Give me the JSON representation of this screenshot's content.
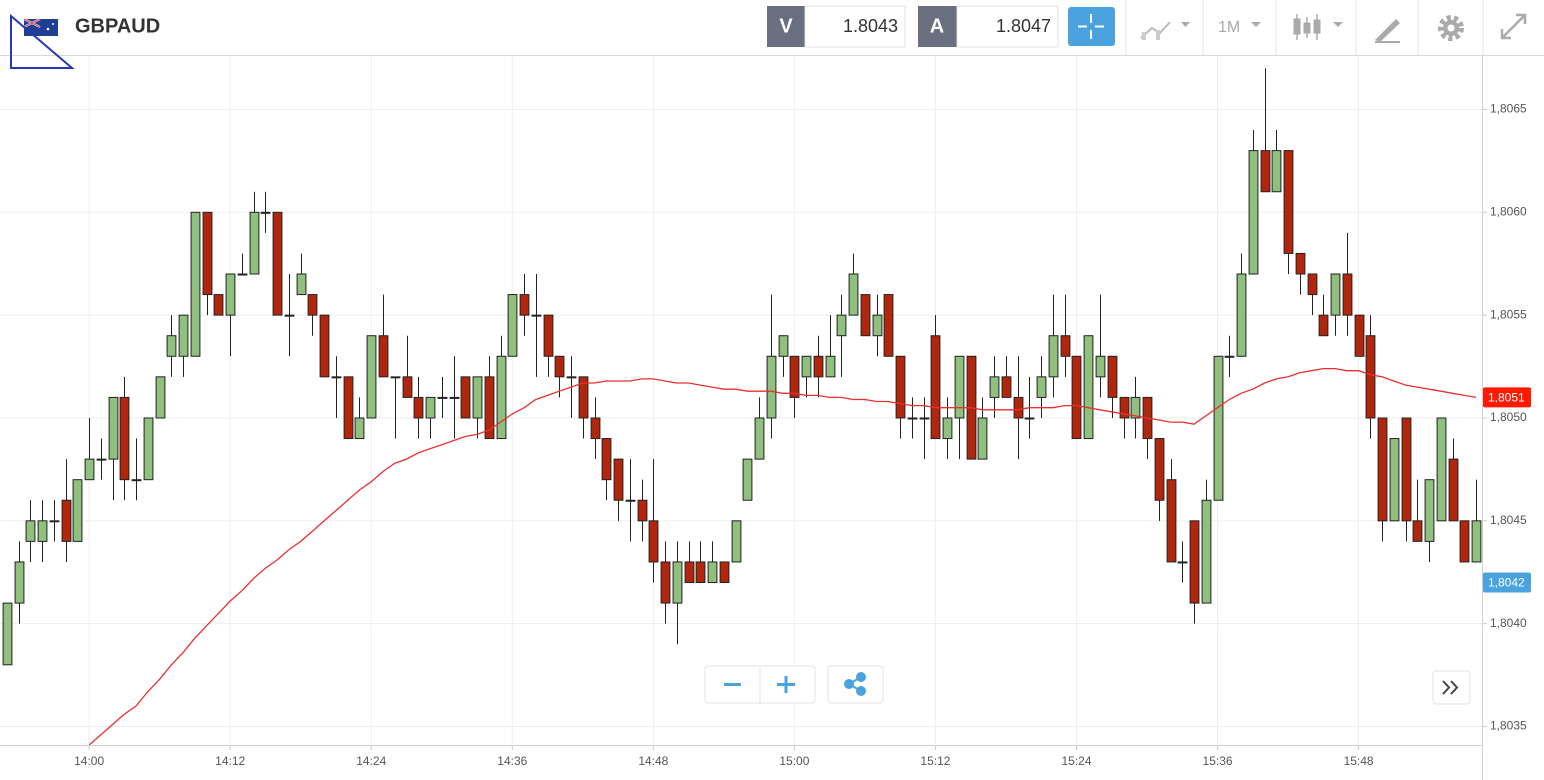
{
  "header": {
    "symbol": "GBPAUD",
    "bid_label": "V",
    "bid": 1.8043,
    "ask_label": "A",
    "ask": 1.8047,
    "timeframe": "1M"
  },
  "chart_data": {
    "type": "candlestick",
    "up_color": "#8fc07d",
    "down_color": "#b3260e",
    "x": [
      "13:53",
      "13:54",
      "13:55",
      "13:56",
      "13:57",
      "13:58",
      "13:59",
      "14:00",
      "14:01",
      "14:02",
      "14:03",
      "14:04",
      "14:05",
      "14:06",
      "14:07",
      "14:08",
      "14:09",
      "14:10",
      "14:11",
      "14:12",
      "14:13",
      "14:14",
      "14:15",
      "14:16",
      "14:17",
      "14:18",
      "14:19",
      "14:20",
      "14:21",
      "14:22",
      "14:23",
      "14:24",
      "14:25",
      "14:26",
      "14:27",
      "14:28",
      "14:29",
      "14:30",
      "14:31",
      "14:32",
      "14:33",
      "14:34",
      "14:35",
      "14:36",
      "14:37",
      "14:38",
      "14:39",
      "14:40",
      "14:41",
      "14:42",
      "14:43",
      "14:44",
      "14:45",
      "14:46",
      "14:47",
      "14:48",
      "14:49",
      "14:50",
      "14:51",
      "14:52",
      "14:53",
      "14:54",
      "14:55",
      "14:56",
      "14:57",
      "14:58",
      "14:59",
      "15:00",
      "15:01",
      "15:02",
      "15:03",
      "15:04",
      "15:05",
      "15:06",
      "15:07",
      "15:08",
      "15:09",
      "15:10",
      "15:11",
      "15:12",
      "15:13",
      "15:14",
      "15:15",
      "15:16",
      "15:17",
      "15:18",
      "15:19",
      "15:20",
      "15:21",
      "15:22",
      "15:23",
      "15:24",
      "15:25",
      "15:26",
      "15:27",
      "15:28",
      "15:29",
      "15:30",
      "15:31",
      "15:32",
      "15:33",
      "15:34",
      "15:35",
      "15:36",
      "15:37",
      "15:38",
      "15:39",
      "15:40",
      "15:41",
      "15:42",
      "15:43",
      "15:44",
      "15:45",
      "15:46",
      "15:47",
      "15:48",
      "15:49",
      "15:50",
      "15:51",
      "15:52",
      "15:53",
      "15:54",
      "15:55",
      "15:56",
      "15:57",
      "15:58"
    ],
    "open": [
      1.8038,
      1.8041,
      1.8044,
      1.8044,
      1.8045,
      1.8046,
      1.8044,
      1.8047,
      1.8048,
      1.8048,
      1.8051,
      1.8047,
      1.8047,
      1.805,
      1.8053,
      1.8053,
      1.8053,
      1.806,
      1.8056,
      1.8055,
      1.8057,
      1.8057,
      1.806,
      1.806,
      1.8055,
      1.8056,
      1.8056,
      1.8055,
      1.8052,
      1.8052,
      1.8049,
      1.805,
      1.8054,
      1.8052,
      1.8052,
      1.8051,
      1.805,
      1.8051,
      1.8051,
      1.8052,
      1.805,
      1.8052,
      1.8049,
      1.8053,
      1.8056,
      1.8055,
      1.8055,
      1.8053,
      1.8052,
      1.8052,
      1.805,
      1.8049,
      1.8048,
      1.8046,
      1.8046,
      1.8045,
      1.8043,
      1.8041,
      1.8043,
      1.8043,
      1.8042,
      1.8043,
      1.8043,
      1.8046,
      1.8048,
      1.805,
      1.8053,
      1.8053,
      1.8052,
      1.8053,
      1.8052,
      1.8054,
      1.8055,
      1.8056,
      1.8054,
      1.8056,
      1.8053,
      1.805,
      1.805,
      1.8054,
      1.8049,
      1.805,
      1.8053,
      1.8048,
      1.8051,
      1.8052,
      1.8051,
      1.805,
      1.8051,
      1.8052,
      1.8054,
      1.8053,
      1.8049,
      1.8052,
      1.8053,
      1.8051,
      1.805,
      1.8051,
      1.8049,
      1.8047,
      1.8043,
      1.8045,
      1.8041,
      1.8046,
      1.8053,
      1.8053,
      1.8057,
      1.8063,
      1.8061,
      1.8063,
      1.8058,
      1.8057,
      1.8055,
      1.8055,
      1.8057,
      1.8055,
      1.8054,
      1.805,
      1.8045,
      1.805,
      1.8045,
      1.8044,
      1.8045,
      1.8048,
      1.8045,
      1.8043
    ],
    "high": [
      1.8041,
      1.8044,
      1.8046,
      1.8046,
      1.8046,
      1.8048,
      1.8047,
      1.805,
      1.8049,
      1.8051,
      1.8052,
      1.8049,
      1.805,
      1.8052,
      1.8055,
      1.8055,
      1.806,
      1.806,
      1.8056,
      1.8057,
      1.8058,
      1.8061,
      1.8061,
      1.806,
      1.8057,
      1.8058,
      1.8056,
      1.8055,
      1.8053,
      1.8052,
      1.8051,
      1.8054,
      1.8056,
      1.8052,
      1.8054,
      1.8052,
      1.8051,
      1.8052,
      1.8053,
      1.8052,
      1.8052,
      1.8053,
      1.8054,
      1.8056,
      1.8057,
      1.8057,
      1.8055,
      1.8053,
      1.8053,
      1.8052,
      1.8051,
      1.8049,
      1.8048,
      1.8048,
      1.8047,
      1.8048,
      1.8044,
      1.8044,
      1.8044,
      1.8044,
      1.8044,
      1.8043,
      1.8045,
      1.8048,
      1.8051,
      1.8056,
      1.8054,
      1.8053,
      1.8053,
      1.8054,
      1.8055,
      1.8056,
      1.8058,
      1.8056,
      1.8056,
      1.8056,
      1.8053,
      1.8051,
      1.8051,
      1.8055,
      1.8051,
      1.8053,
      1.8053,
      1.8051,
      1.8053,
      1.8053,
      1.8053,
      1.8052,
      1.8053,
      1.8056,
      1.8056,
      1.8053,
      1.8054,
      1.8056,
      1.8053,
      1.8051,
      1.8052,
      1.8051,
      1.8049,
      1.8048,
      1.8044,
      1.8045,
      1.8047,
      1.8053,
      1.8054,
      1.8058,
      1.8064,
      1.8067,
      1.8064,
      1.8063,
      1.8058,
      1.8057,
      1.8056,
      1.8057,
      1.8059,
      1.8055,
      1.8055,
      1.805,
      1.8049,
      1.805,
      1.8047,
      1.8047,
      1.805,
      1.8049,
      1.8045,
      1.8047
    ],
    "low": [
      1.8038,
      1.804,
      1.8043,
      1.8043,
      1.8044,
      1.8043,
      1.8044,
      1.8047,
      1.8047,
      1.8046,
      1.8046,
      1.8046,
      1.8047,
      1.805,
      1.8052,
      1.8052,
      1.8053,
      1.8055,
      1.8055,
      1.8053,
      1.8057,
      1.8057,
      1.8059,
      1.8055,
      1.8053,
      1.8056,
      1.8054,
      1.8052,
      1.805,
      1.8049,
      1.8049,
      1.805,
      1.8052,
      1.8049,
      1.8051,
      1.8049,
      1.8049,
      1.805,
      1.8049,
      1.805,
      1.8049,
      1.8049,
      1.8049,
      1.8053,
      1.8054,
      1.8052,
      1.8052,
      1.8051,
      1.805,
      1.8049,
      1.8048,
      1.8046,
      1.8045,
      1.8044,
      1.8044,
      1.8042,
      1.804,
      1.8039,
      1.8042,
      1.8042,
      1.8042,
      1.8042,
      1.8043,
      1.8046,
      1.8048,
      1.8049,
      1.8052,
      1.805,
      1.8051,
      1.8051,
      1.8052,
      1.8052,
      1.8055,
      1.8054,
      1.8053,
      1.8053,
      1.8049,
      1.8049,
      1.8048,
      1.8049,
      1.8048,
      1.8048,
      1.8048,
      1.8048,
      1.805,
      1.8051,
      1.8048,
      1.8049,
      1.805,
      1.8051,
      1.8052,
      1.8049,
      1.8049,
      1.8051,
      1.805,
      1.8049,
      1.8049,
      1.8048,
      1.8045,
      1.8043,
      1.8042,
      1.804,
      1.8041,
      1.8046,
      1.8052,
      1.8053,
      1.8057,
      1.8061,
      1.8061,
      1.8057,
      1.8056,
      1.8055,
      1.8054,
      1.8054,
      1.8054,
      1.8053,
      1.8049,
      1.8044,
      1.8045,
      1.8044,
      1.8044,
      1.8043,
      1.8045,
      1.8045,
      1.8043,
      1.8043
    ],
    "close": [
      1.8041,
      1.8043,
      1.8045,
      1.8045,
      1.8045,
      1.8044,
      1.8047,
      1.8048,
      1.8048,
      1.8051,
      1.8047,
      1.8047,
      1.805,
      1.8052,
      1.8054,
      1.8055,
      1.806,
      1.8056,
      1.8055,
      1.8057,
      1.8057,
      1.806,
      1.806,
      1.8055,
      1.8055,
      1.8057,
      1.8055,
      1.8052,
      1.8052,
      1.8049,
      1.805,
      1.8054,
      1.8052,
      1.8052,
      1.8051,
      1.805,
      1.8051,
      1.8051,
      1.8051,
      1.805,
      1.8052,
      1.8049,
      1.8053,
      1.8056,
      1.8055,
      1.8055,
      1.8053,
      1.8052,
      1.8052,
      1.805,
      1.8049,
      1.8047,
      1.8046,
      1.8046,
      1.8045,
      1.8043,
      1.8041,
      1.8043,
      1.8042,
      1.8042,
      1.8043,
      1.8042,
      1.8045,
      1.8048,
      1.805,
      1.8053,
      1.8054,
      1.8051,
      1.8053,
      1.8052,
      1.8053,
      1.8055,
      1.8057,
      1.8054,
      1.8055,
      1.8053,
      1.805,
      1.805,
      1.805,
      1.8049,
      1.805,
      1.8053,
      1.8048,
      1.805,
      1.8052,
      1.8051,
      1.805,
      1.805,
      1.8052,
      1.8054,
      1.8053,
      1.8049,
      1.8054,
      1.8053,
      1.8051,
      1.805,
      1.8051,
      1.8049,
      1.8046,
      1.8043,
      1.8043,
      1.8041,
      1.8046,
      1.8053,
      1.8053,
      1.8057,
      1.8063,
      1.8061,
      1.8063,
      1.8058,
      1.8057,
      1.8056,
      1.8054,
      1.8057,
      1.8055,
      1.8053,
      1.805,
      1.8045,
      1.8049,
      1.8045,
      1.8044,
      1.8047,
      1.805,
      1.8045,
      1.8043,
      1.8045
    ],
    "moving_average": {
      "color": "#e8312f",
      "values": [
        null,
        null,
        null,
        null,
        null,
        null,
        null,
        1.80341,
        1.80346,
        1.80351,
        1.80356,
        1.8036,
        1.80367,
        1.80373,
        1.8038,
        1.80386,
        1.80393,
        1.80399,
        1.80405,
        1.80411,
        1.80416,
        1.80422,
        1.80427,
        1.80431,
        1.80436,
        1.8044,
        1.80445,
        1.8045,
        1.80455,
        1.8046,
        1.80465,
        1.80469,
        1.80474,
        1.80478,
        1.8048,
        1.80483,
        1.80485,
        1.80487,
        1.80489,
        1.80491,
        1.80492,
        1.80494,
        1.80498,
        1.80502,
        1.80505,
        1.80509,
        1.80511,
        1.80513,
        1.80515,
        1.80517,
        1.80517,
        1.80518,
        1.80518,
        1.80518,
        1.80519,
        1.80519,
        1.80518,
        1.80517,
        1.80517,
        1.80516,
        1.80515,
        1.80514,
        1.80514,
        1.80513,
        1.80513,
        1.80513,
        1.80512,
        1.80512,
        1.80511,
        1.80511,
        1.8051,
        1.8051,
        1.80509,
        1.80509,
        1.80508,
        1.80508,
        1.80507,
        1.80506,
        1.80506,
        1.80505,
        1.80505,
        1.80505,
        1.80505,
        1.80504,
        1.80504,
        1.80504,
        1.80504,
        1.80505,
        1.80505,
        1.80505,
        1.80506,
        1.80506,
        1.80505,
        1.80504,
        1.80503,
        1.80502,
        1.80501,
        1.805,
        1.80499,
        1.80498,
        1.80498,
        1.80497,
        1.80501,
        1.80505,
        1.80509,
        1.80512,
        1.80514,
        1.80517,
        1.80519,
        1.8052,
        1.80522,
        1.80523,
        1.80524,
        1.80524,
        1.80523,
        1.80523,
        1.80521,
        1.8052,
        1.80518,
        1.80516,
        1.80515,
        1.80514,
        1.80513,
        1.80512,
        1.80511,
        1.8051
      ]
    },
    "ylim": [
      1.80341,
      1.80676
    ],
    "yticks": [
      {
        "value": 1.8035,
        "label": "1,8035"
      },
      {
        "value": 1.804,
        "label": "1,8040"
      },
      {
        "value": 1.8045,
        "label": "1,8045"
      },
      {
        "value": 1.805,
        "label": "1,8050"
      },
      {
        "value": 1.8055,
        "label": "1,8055"
      },
      {
        "value": 1.806,
        "label": "1,8060"
      },
      {
        "value": 1.8065,
        "label": "1,8065"
      }
    ],
    "xticks": [
      "14:00",
      "14:12",
      "14:24",
      "14:36",
      "14:48",
      "15:00",
      "15:12",
      "15:24",
      "15:36",
      "15:48"
    ],
    "grid": true,
    "price_markers": [
      {
        "value": 1.8051,
        "label": "1,8051",
        "color": "#ff1a00"
      },
      {
        "value": 1.8042,
        "label": "1,8042",
        "color": "#4aa3df"
      }
    ]
  }
}
